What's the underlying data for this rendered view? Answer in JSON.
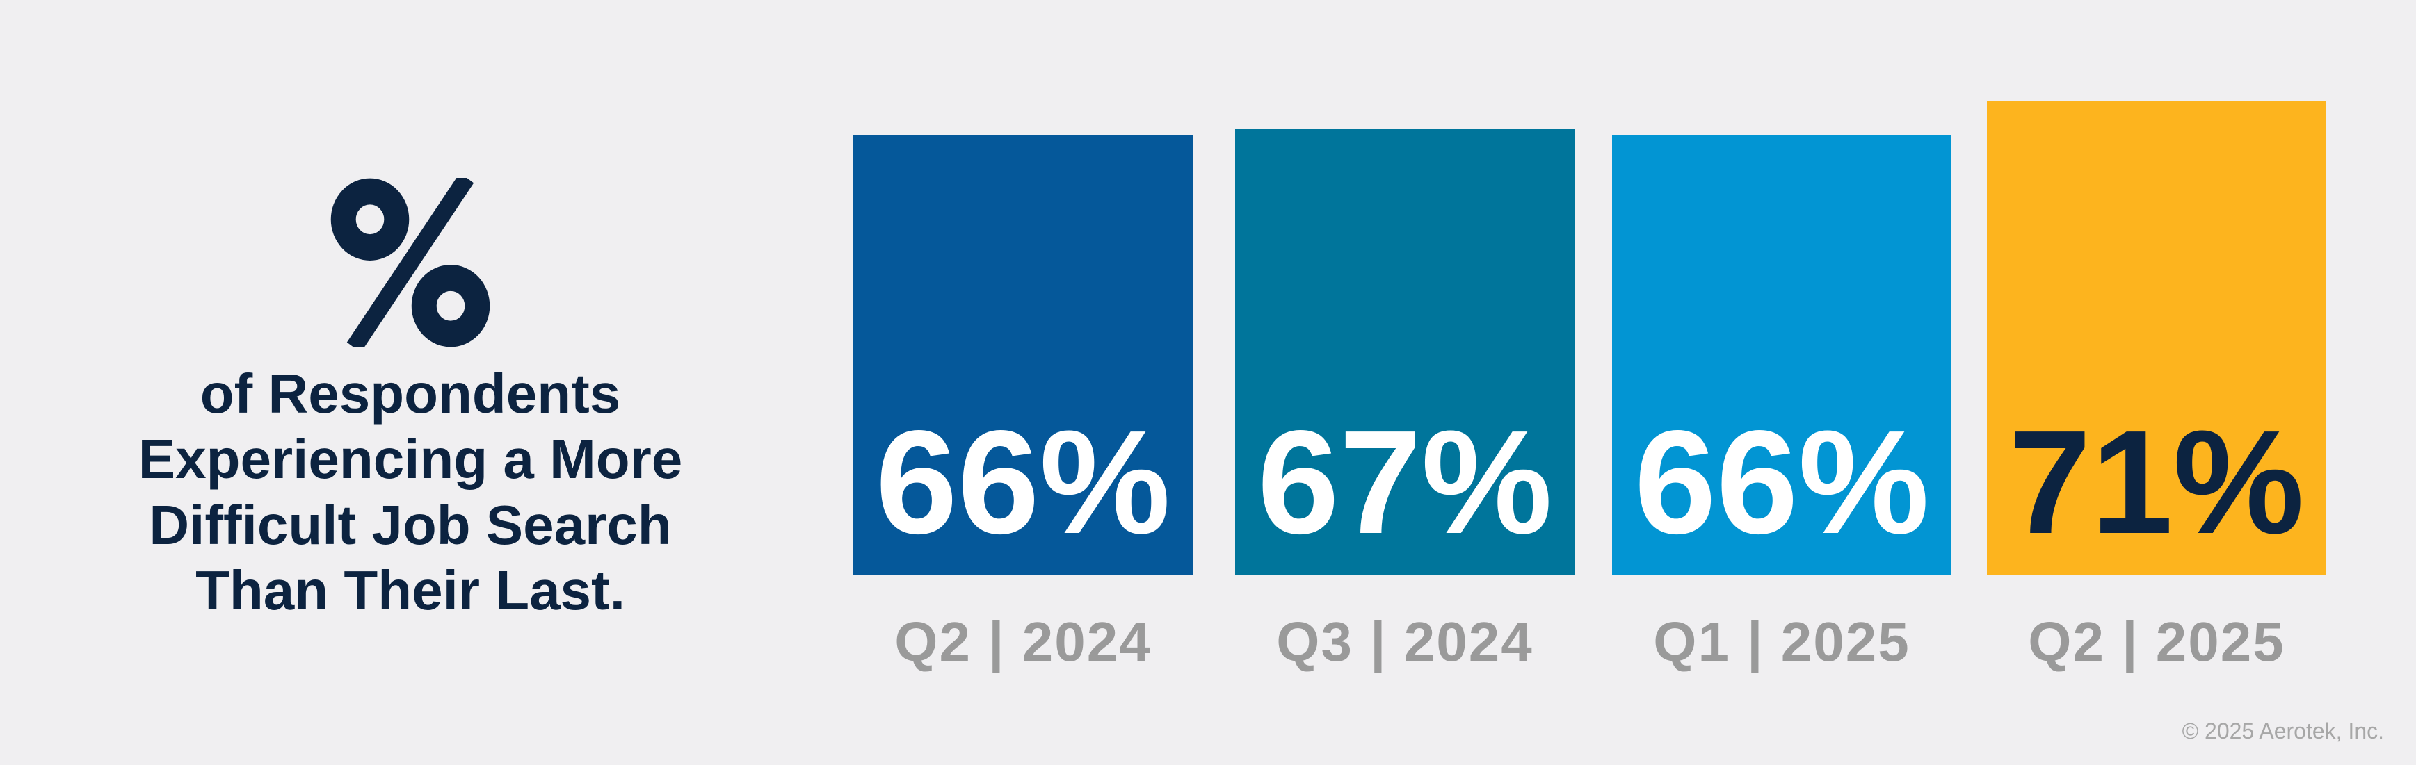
{
  "title": {
    "symbol": "%",
    "lines": [
      "of Respondents",
      "Experiencing a More",
      "Difficult Job Search",
      "Than Their Last."
    ]
  },
  "chart_data": {
    "type": "bar",
    "title": "% of Respondents Experiencing a More Difficult Job Search Than Their Last.",
    "categories": [
      "Q2 | 2024",
      "Q3 | 2024",
      "Q1 | 2025",
      "Q2 | 2025"
    ],
    "values": [
      66,
      67,
      66,
      71
    ],
    "value_labels": [
      "66%",
      "67%",
      "66%",
      "71%"
    ],
    "bar_colors": [
      "#05589a",
      "#00759b",
      "#0295d3",
      "#fdb41e"
    ],
    "value_label_colors": [
      "#ffffff",
      "#ffffff",
      "#ffffff",
      "#0c2340"
    ],
    "xlabel": "",
    "ylabel": "",
    "ylim": [
      0,
      100
    ],
    "grid": false,
    "legend": false
  },
  "footer": {
    "copyright": "© 2025 Aerotek, Inc."
  },
  "colors": {
    "background": "#f0eff1",
    "title_text": "#0c2340",
    "category_label": "#9a9a9a",
    "copyright_text": "#a7a7a7"
  }
}
